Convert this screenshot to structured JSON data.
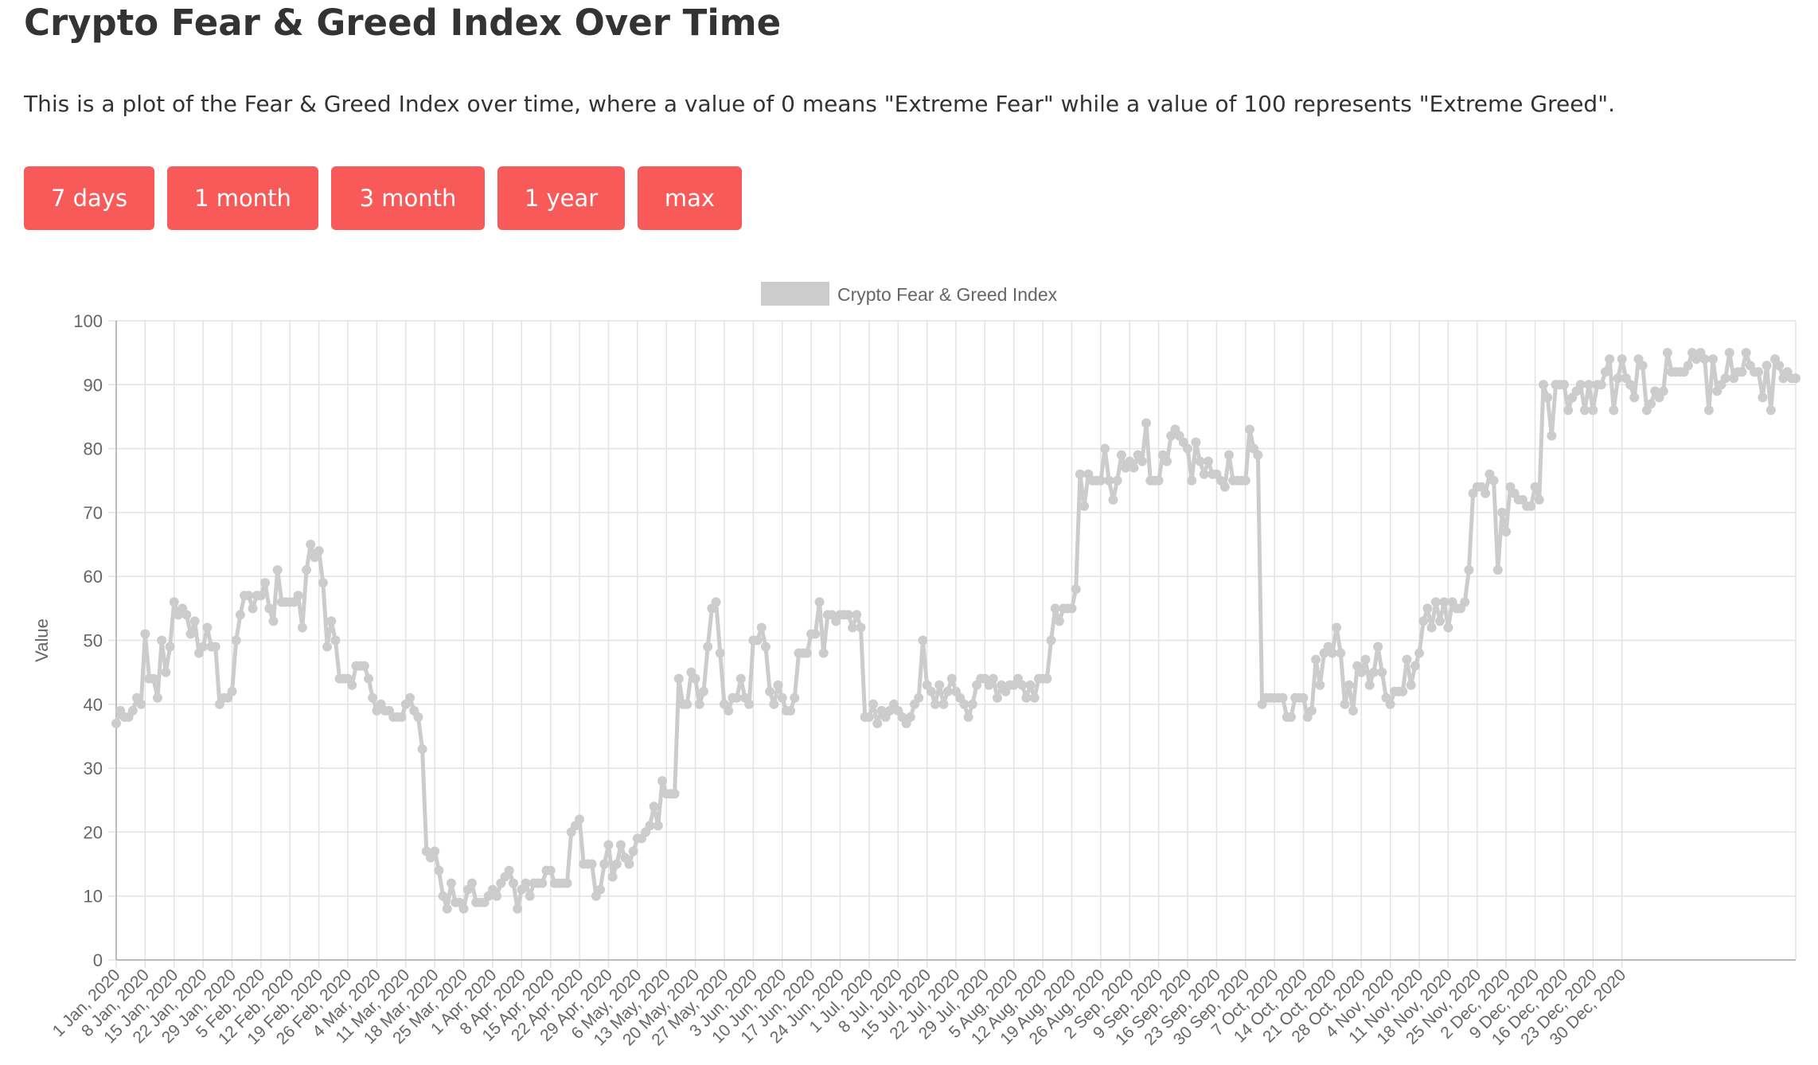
{
  "title": "Crypto Fear & Greed Index Over Time",
  "description": "This is a plot of the Fear & Greed Index over time, where a value of 0 means \"Extreme Fear\" while a value of 100 represents \"Extreme Greed\".",
  "range_buttons": [
    "7 days",
    "1 month",
    "3 month",
    "1 year",
    "max"
  ],
  "colors": {
    "button": "#f85a5a",
    "series": "#cccccc",
    "grid": "#e3e3e3",
    "text": "#333333"
  },
  "chart_data": {
    "type": "line",
    "title": "",
    "legend": {
      "label": "Crypto Fear & Greed Index",
      "position": "top"
    },
    "xlabel": "",
    "ylabel": "Value",
    "ylim": [
      0,
      100
    ],
    "yticks": [
      0,
      10,
      20,
      30,
      40,
      50,
      60,
      70,
      80,
      90,
      100
    ],
    "grid": true,
    "x_start": "2020-01-01",
    "x_end": "2020-12-31",
    "x_tick_labels": [
      "1 Jan, 2020",
      "8 Jan, 2020",
      "15 Jan, 2020",
      "22 Jan, 2020",
      "29 Jan, 2020",
      "5 Feb, 2020",
      "12 Feb, 2020",
      "19 Feb, 2020",
      "26 Feb, 2020",
      "4 Mar, 2020",
      "11 Mar, 2020",
      "18 Mar, 2020",
      "25 Mar, 2020",
      "1 Apr, 2020",
      "8 Apr, 2020",
      "15 Apr, 2020",
      "22 Apr, 2020",
      "29 Apr, 2020",
      "6 May, 2020",
      "13 May, 2020",
      "20 May, 2020",
      "27 May, 2020",
      "3 Jun, 2020",
      "10 Jun, 2020",
      "17 Jun, 2020",
      "24 Jun, 2020",
      "1 Jul, 2020",
      "8 Jul, 2020",
      "15 Jul, 2020",
      "22 Jul, 2020",
      "29 Jul, 2020",
      "5 Aug, 2020",
      "12 Aug, 2020",
      "19 Aug, 2020",
      "26 Aug, 2020",
      "2 Sep, 2020",
      "9 Sep, 2020",
      "16 Sep, 2020",
      "23 Sep, 2020",
      "30 Sep, 2020",
      "7 Oct, 2020",
      "14 Oct, 2020",
      "21 Oct, 2020",
      "28 Oct, 2020",
      "4 Nov, 2020",
      "11 Nov, 2020",
      "18 Nov, 2020",
      "25 Nov, 2020",
      "2 Dec, 2020",
      "9 Dec, 2020",
      "16 Dec, 2020",
      "23 Dec, 2020",
      "30 Dec, 2020"
    ],
    "series": [
      {
        "name": "Crypto Fear & Greed Index",
        "values": [
          37,
          39,
          38,
          38,
          39,
          41,
          40,
          51,
          44,
          44,
          41,
          50,
          45,
          49,
          56,
          54,
          55,
          54,
          51,
          53,
          48,
          49,
          52,
          49,
          49,
          40,
          41,
          41,
          42,
          50,
          54,
          57,
          57,
          55,
          57,
          57,
          59,
          55,
          53,
          61,
          56,
          56,
          56,
          56,
          57,
          52,
          61,
          65,
          63,
          64,
          59,
          49,
          53,
          50,
          44,
          44,
          44,
          43,
          46,
          46,
          46,
          44,
          41,
          39,
          40,
          39,
          39,
          38,
          38,
          38,
          40,
          41,
          39,
          38,
          33,
          17,
          16,
          17,
          14,
          10,
          8,
          12,
          9,
          9,
          8,
          11,
          12,
          9,
          9,
          9,
          10,
          11,
          10,
          12,
          13,
          14,
          12,
          8,
          11,
          12,
          10,
          12,
          12,
          12,
          14,
          14,
          12,
          12,
          12,
          12,
          20,
          21,
          22,
          15,
          15,
          15,
          10,
          11,
          15,
          18,
          13,
          15,
          18,
          16,
          15,
          17,
          19,
          19,
          20,
          21,
          24,
          21,
          28,
          26,
          26,
          26,
          44,
          40,
          40,
          45,
          44,
          40,
          42,
          49,
          55,
          56,
          48,
          40,
          39,
          41,
          41,
          44,
          41,
          40,
          50,
          50,
          52,
          49,
          42,
          40,
          43,
          41,
          39,
          39,
          41,
          48,
          48,
          48,
          51,
          51,
          56,
          48,
          54,
          54,
          53,
          54,
          54,
          54,
          52,
          54,
          52,
          38,
          38,
          40,
          37,
          39,
          38,
          39,
          40,
          39,
          38,
          37,
          38,
          40,
          41,
          50,
          43,
          42,
          40,
          43,
          40,
          42,
          44,
          42,
          41,
          40,
          38,
          40,
          43,
          44,
          44,
          43,
          44,
          41,
          43,
          42,
          43,
          43,
          44,
          43,
          41,
          43,
          41,
          44,
          44,
          44,
          50,
          55,
          53,
          55,
          55,
          55,
          58,
          76,
          71,
          76,
          75,
          75,
          75,
          80,
          75,
          72,
          75,
          79,
          77,
          78,
          77,
          79,
          78,
          84,
          75,
          75,
          75,
          79,
          78,
          82,
          83,
          82,
          81,
          80,
          75,
          81,
          78,
          76,
          78,
          76,
          76,
          75,
          74,
          79,
          75,
          75,
          75,
          75,
          83,
          80,
          79,
          40,
          41,
          41,
          41,
          41,
          41,
          38,
          38,
          41,
          41,
          41,
          38,
          39,
          47,
          43,
          48,
          49,
          48,
          52,
          48,
          40,
          43,
          39,
          46,
          45,
          47,
          43,
          45,
          49,
          45,
          41,
          40,
          42,
          42,
          42,
          47,
          43,
          46,
          48,
          53,
          55,
          52,
          56,
          53,
          56,
          52,
          56,
          55,
          55,
          56,
          61,
          73,
          74,
          74,
          73,
          76,
          75,
          61,
          70,
          67,
          74,
          73,
          72,
          72,
          71,
          71,
          74,
          72,
          90,
          88,
          82,
          90,
          90,
          90,
          86,
          88,
          89,
          90,
          86,
          90,
          86,
          90,
          90,
          92,
          94,
          86,
          91,
          94,
          91,
          90,
          88,
          94,
          93,
          86,
          87,
          89,
          88,
          89,
          95,
          92,
          92,
          92,
          92,
          93,
          95,
          94,
          95,
          94,
          86,
          94,
          89,
          90,
          91,
          95,
          91,
          92,
          92,
          95,
          93,
          92,
          92,
          88,
          93,
          86,
          94,
          93,
          91,
          92,
          91,
          91
        ]
      }
    ]
  }
}
